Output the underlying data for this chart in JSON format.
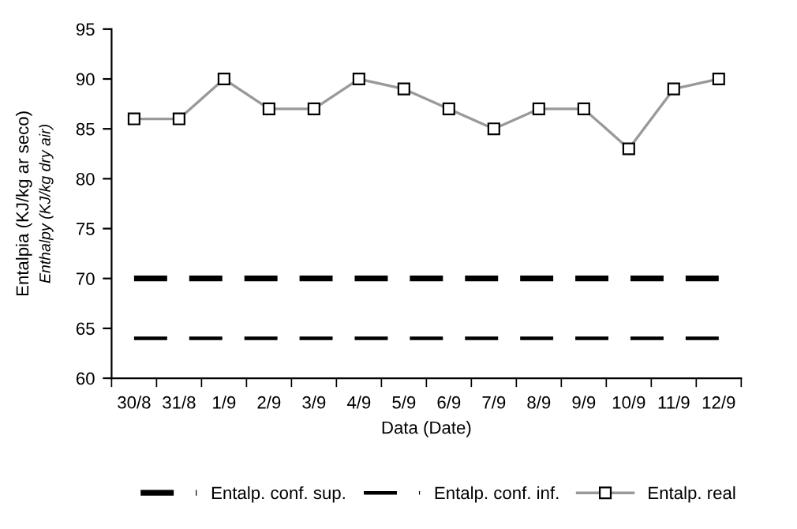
{
  "chart_data": {
    "type": "line",
    "xlabel": "Data (Date)",
    "ylabel": "Entalpia (KJ/kg ar seco)\nEnthalpy (KJ/kg dry air)",
    "categories": [
      "30/8",
      "31/8",
      "1/9",
      "2/9",
      "3/9",
      "4/9",
      "5/9",
      "6/9",
      "7/9",
      "8/9",
      "9/9",
      "10/9",
      "11/9",
      "12/9"
    ],
    "series": [
      {
        "name": "Entalp. conf. sup.",
        "color": "#000000",
        "line_style": "dashed",
        "marker": "none",
        "values": [
          70,
          70,
          70,
          70,
          70,
          70,
          70,
          70,
          70,
          70,
          70,
          70,
          70,
          70
        ]
      },
      {
        "name": "Entalp. conf. inf.",
        "color": "#000000",
        "line_style": "dashed",
        "marker": "none",
        "values": [
          64,
          64,
          64,
          64,
          64,
          64,
          64,
          64,
          64,
          64,
          64,
          64,
          64,
          64
        ]
      },
      {
        "name": "Entalp. real",
        "color": "#999999",
        "line_style": "solid",
        "marker": "square",
        "values": [
          86,
          86,
          90,
          87,
          87,
          90,
          89,
          87,
          85,
          87,
          87,
          83,
          89,
          90
        ]
      }
    ],
    "ylim": [
      60,
      95
    ],
    "yticks": [
      60,
      65,
      70,
      75,
      80,
      85,
      90,
      95
    ],
    "grid": false,
    "legend": "bottom"
  }
}
